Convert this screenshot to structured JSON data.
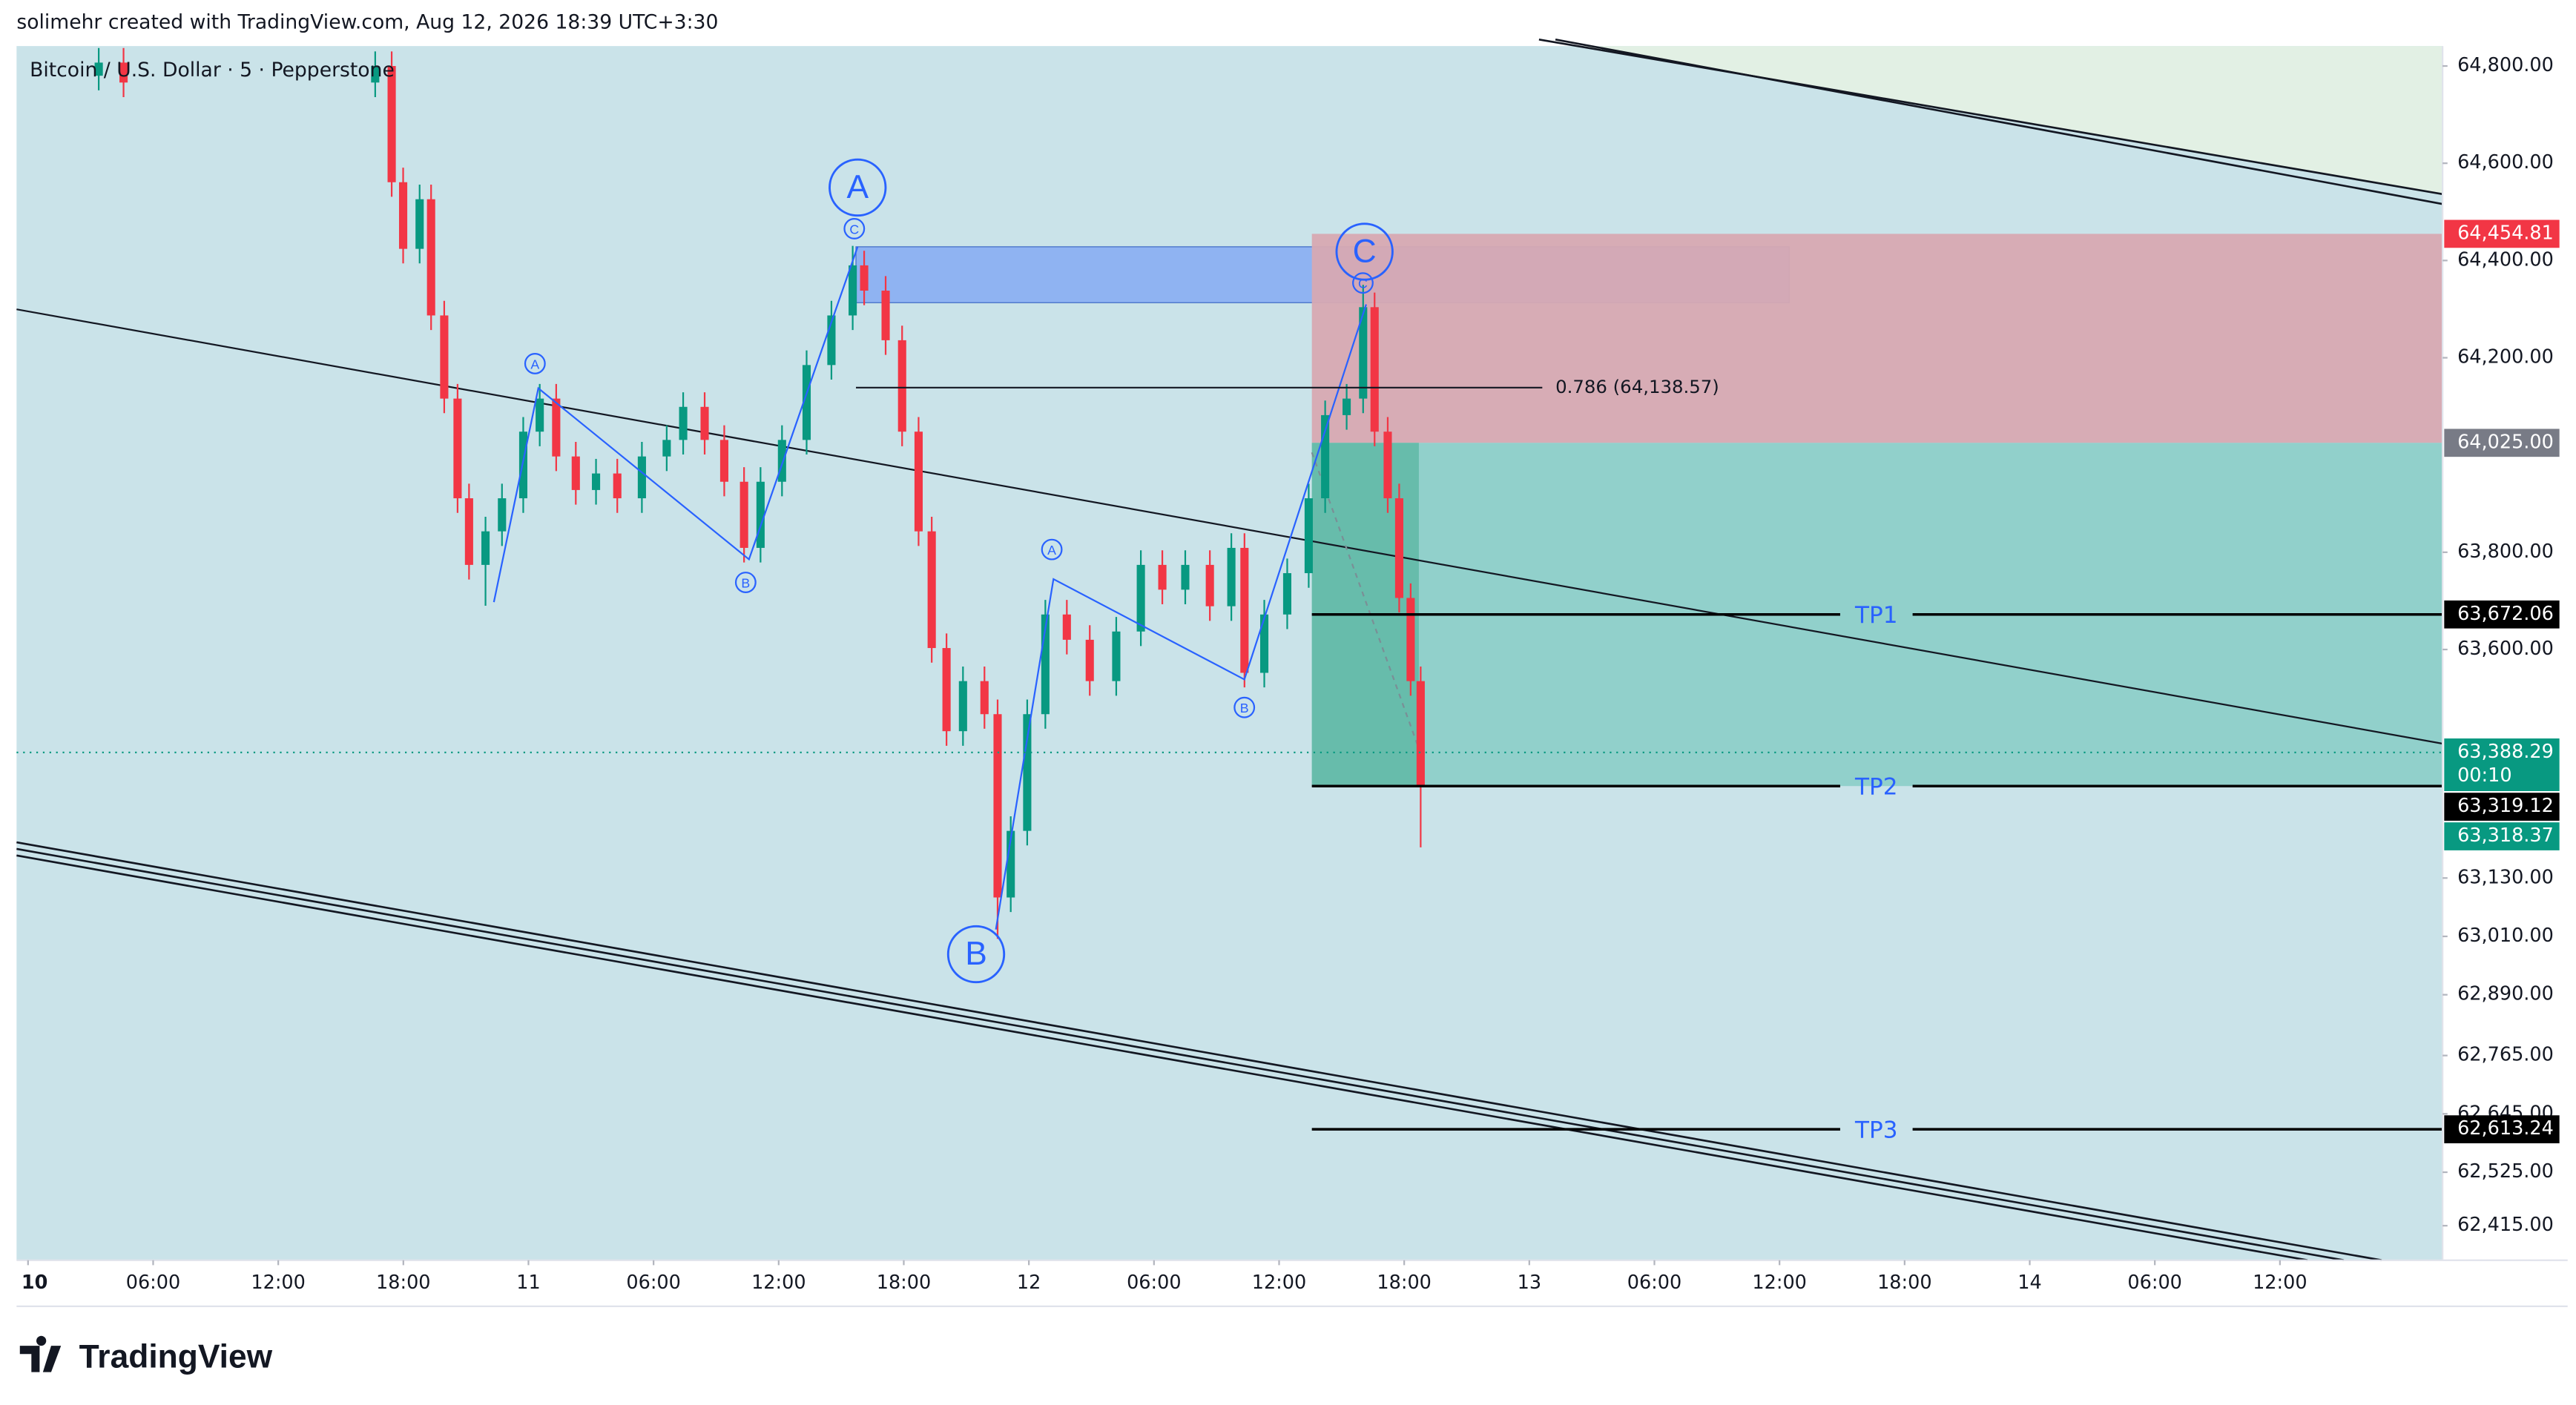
{
  "attribution": "solimehr created with TradingView.com, Aug 12, 2026 18:39 UTC+3:30",
  "logo": "TradingView",
  "chart_data": {
    "type": "candlestick",
    "title": "Bitcoin / U.S. Dollar · 5 · Pepperstone",
    "up_color": "#089981",
    "down_color": "#f23645",
    "x": [
      3.39,
      4.58,
      16.65,
      17.44,
      17.99,
      18.78,
      19.33,
      19.96,
      20.6,
      21.15,
      21.94,
      22.73,
      23.75,
      24.54,
      25.33,
      26.27,
      27.24,
      28.26,
      29.44,
      30.63,
      31.42,
      32.45,
      33.39,
      34.34,
      35.13,
      36.16,
      37.34,
      38.53,
      39.55,
      40.1,
      41.13,
      41.92,
      42.71,
      43.34,
      44.05,
      44.84,
      45.87,
      46.5,
      47.13,
      47.92,
      48.79,
      49.82,
      50.92,
      52.19,
      53.37,
      54.4,
      55.5,
      56.68,
      57.71,
      58.34,
      59.29,
      60.39,
      61.42,
      62.21,
      63.24,
      64.03,
      64.58,
      65.21,
      65.76,
      66.31,
      66.79
    ],
    "open": [
      64780,
      64807,
      64766,
      64800,
      64561,
      64424,
      64526,
      64287,
      64116,
      63911,
      63774,
      63843,
      63911,
      64048,
      64116,
      63997,
      63928,
      63962,
      63911,
      63997,
      64031,
      64099,
      64031,
      63945,
      63809,
      63945,
      64031,
      64185,
      64287,
      64390,
      64338,
      64236,
      64048,
      63843,
      63603,
      63432,
      63535,
      63467,
      63090,
      63227,
      63467,
      63672,
      63620,
      63535,
      63637,
      63774,
      63723,
      63774,
      63689,
      63809,
      63552,
      63672,
      63757,
      63911,
      64082,
      64116,
      64304,
      64048,
      63911,
      63706,
      63535
    ],
    "high": [
      64837,
      64837,
      64830,
      64830,
      64591,
      64556,
      64556,
      64317,
      64146,
      63941,
      63873,
      63941,
      64078,
      64146,
      64146,
      64027,
      63992,
      63992,
      64027,
      64061,
      64129,
      64129,
      64061,
      63975,
      63975,
      64061,
      64215,
      64317,
      64430,
      64420,
      64368,
      64266,
      64078,
      63873,
      63633,
      63565,
      63565,
      63497,
      63257,
      63497,
      63702,
      63702,
      63650,
      63667,
      63804,
      63804,
      63804,
      63804,
      63839,
      63839,
      63702,
      63787,
      63941,
      64112,
      64146,
      64350,
      64334,
      64078,
      63941,
      63736,
      63565
    ],
    "low": [
      64750,
      64736,
      64736,
      64531,
      64394,
      64394,
      64257,
      64086,
      63881,
      63744,
      63690,
      63813,
      63881,
      64018,
      63967,
      63898,
      63898,
      63881,
      63881,
      63967,
      64001,
      64001,
      63915,
      63779,
      63779,
      63915,
      64001,
      64155,
      64257,
      64308,
      64206,
      64018,
      63813,
      63573,
      63402,
      63402,
      63437,
      63005,
      63060,
      63197,
      63437,
      63590,
      63505,
      63505,
      63607,
      63693,
      63693,
      63659,
      63659,
      63522,
      63522,
      63642,
      63727,
      63881,
      64052,
      64086,
      64018,
      63881,
      63676,
      63505,
      63193
    ],
    "close": [
      64807,
      64766,
      64800,
      64561,
      64424,
      64526,
      64287,
      64116,
      63911,
      63774,
      63843,
      63911,
      64048,
      64116,
      63997,
      63928,
      63962,
      63911,
      63997,
      64031,
      64099,
      64031,
      63945,
      63809,
      63945,
      64031,
      64185,
      64287,
      64390,
      64338,
      64236,
      64048,
      63843,
      63603,
      63432,
      63535,
      63467,
      63090,
      63227,
      63467,
      63672,
      63620,
      63535,
      63637,
      63774,
      63723,
      63774,
      63689,
      63809,
      63552,
      63672,
      63757,
      63911,
      64082,
      64116,
      64304,
      64048,
      63911,
      63706,
      63535,
      63319
    ],
    "xlim": [
      -0.55,
      115.8
    ],
    "ylim": [
      62344,
      64841
    ],
    "xticks": [
      {
        "value": 0,
        "label": "10"
      },
      {
        "value": 6,
        "label": "06:00"
      },
      {
        "value": 12,
        "label": "12:00"
      },
      {
        "value": 18,
        "label": "18:00"
      },
      {
        "value": 24,
        "label": "11"
      },
      {
        "value": 30,
        "label": "06:00"
      },
      {
        "value": 36,
        "label": "12:00"
      },
      {
        "value": 42,
        "label": "18:00"
      },
      {
        "value": 48,
        "label": "12"
      },
      {
        "value": 54,
        "label": "06:00"
      },
      {
        "value": 60,
        "label": "12:00"
      },
      {
        "value": 66,
        "label": "18:00"
      },
      {
        "value": 72,
        "label": "13"
      },
      {
        "value": 78,
        "label": "06:00"
      },
      {
        "value": 84,
        "label": "12:00"
      },
      {
        "value": 90,
        "label": "18:00"
      },
      {
        "value": 96,
        "label": "14"
      },
      {
        "value": 102,
        "label": "06:00"
      },
      {
        "value": 108,
        "label": "12:00"
      }
    ],
    "yticks": [
      {
        "value": 64800,
        "label": "64,800.00"
      },
      {
        "value": 64600,
        "label": "64,600.00"
      },
      {
        "value": 64400,
        "label": "64,400.00"
      },
      {
        "value": 64200,
        "label": "64,200.00"
      },
      {
        "value": 63800,
        "label": "63,800.00"
      },
      {
        "value": 63600,
        "label": "63,600.00"
      },
      {
        "value": 63130,
        "label": "63,130.00"
      },
      {
        "value": 63010,
        "label": "63,010.00"
      },
      {
        "value": 62890,
        "label": "62,890.00"
      },
      {
        "value": 62765,
        "label": "62,765.00"
      },
      {
        "value": 62645,
        "label": "62,645.00"
      },
      {
        "value": 62525,
        "label": "62,525.00"
      },
      {
        "value": 62415,
        "label": "62,415.00"
      }
    ],
    "grid": false,
    "price_labels": [
      {
        "value": 64454.81,
        "label": "64,454.81",
        "color": "#f23645"
      },
      {
        "value": 64025,
        "label": "64,025.00",
        "color": "#787b86"
      },
      {
        "value": 63388.29,
        "label": "63,388.29",
        "color": "#089981",
        "countdown": "00:10"
      },
      {
        "value": 63319.12,
        "label": "63,319.12",
        "color": "#000000"
      },
      {
        "value": 63318.37,
        "label": "63,318.37",
        "color": "#089981"
      }
    ],
    "targets": [
      {
        "name": "TP1",
        "value": 63672.06,
        "label": "63,672.06"
      },
      {
        "name": "TP2",
        "value": 63319.12,
        "label": "63,319.12"
      },
      {
        "name": "TP3",
        "value": 62613.24,
        "label": "62,613.24"
      }
    ],
    "fib": {
      "label": "0.786 (64,138.57)",
      "value": 64138.57
    },
    "waves": {
      "major": [
        "A",
        "B",
        "C"
      ],
      "minor": [
        "A",
        "B",
        "C"
      ]
    }
  }
}
